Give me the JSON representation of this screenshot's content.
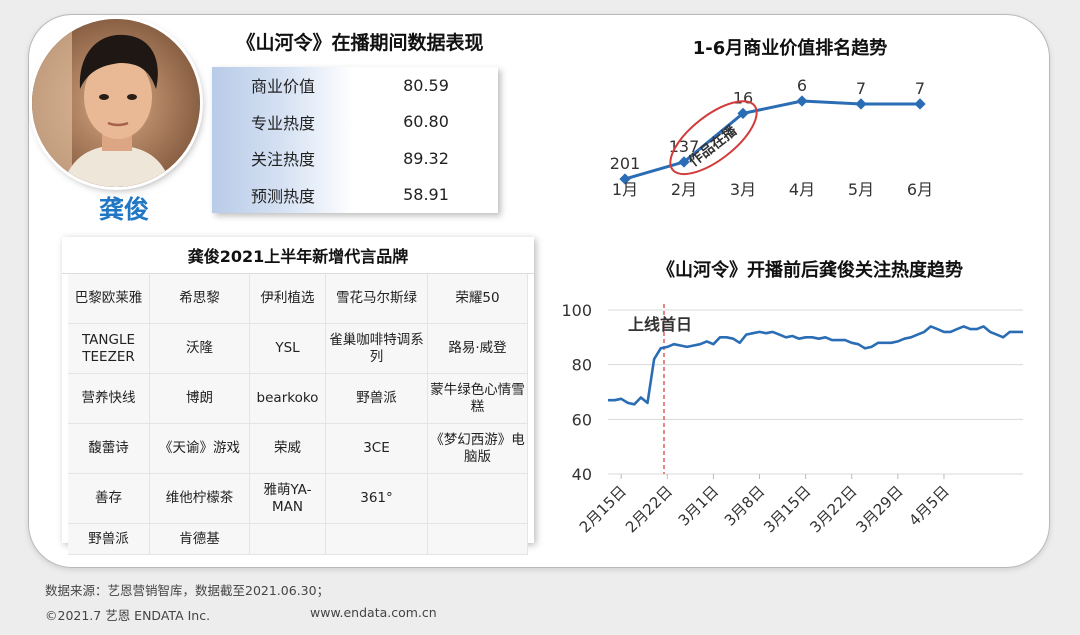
{
  "person": {
    "name": "龚俊"
  },
  "performance": {
    "title": "《山河令》在播期间数据表现",
    "metrics": [
      {
        "label": "商业价值",
        "value": "80.59"
      },
      {
        "label": "专业热度",
        "value": "60.80"
      },
      {
        "label": "关注热度",
        "value": "89.32"
      },
      {
        "label": "预测热度",
        "value": "58.91"
      }
    ]
  },
  "brands": {
    "title": "龚俊2021上半年新增代言品牌",
    "rows": [
      [
        "巴黎欧莱雅",
        "希思黎",
        "伊利植选",
        "雪花马尔斯绿",
        "荣耀50"
      ],
      [
        "TANGLE TEEZER",
        "沃隆",
        "YSL",
        "雀巢咖啡特调系列",
        "路易·威登"
      ],
      [
        "营养快线",
        "博朗",
        "bearkoko",
        "野兽派",
        "蒙牛绿色心情雪糕"
      ],
      [
        "馥蕾诗",
        "《天谕》游戏",
        "荣威",
        "3CE",
        "《梦幻西游》电脑版"
      ],
      [
        "善存",
        "维他柠檬茶",
        "雅萌YA-MAN",
        "361°",
        ""
      ],
      [
        "野兽派",
        "肯德基",
        "",
        "",
        ""
      ]
    ]
  },
  "chart_data": [
    {
      "type": "line",
      "title": "1-6月商业价值排名趋势",
      "categories": [
        "1月",
        "2月",
        "3月",
        "4月",
        "5月",
        "6月"
      ],
      "values": [
        201,
        137,
        16,
        6,
        7,
        7
      ],
      "data_labels": [
        "201",
        "137",
        "16",
        "6",
        "7",
        "7"
      ],
      "annotation": "作品在播",
      "color": "#2a6db5"
    },
    {
      "type": "line",
      "title": "《山河令》开播前后龚俊关注热度趋势",
      "x_ticks": [
        "2月15日",
        "2月22日",
        "3月1日",
        "3月8日",
        "3月15日",
        "3月22日",
        "3月29日",
        "4月5日"
      ],
      "ylim": [
        40,
        100
      ],
      "y_ticks": [
        "40",
        "60",
        "80",
        "100"
      ],
      "grid": true,
      "annotation": "上线首日",
      "annotation_date": "2月22日",
      "color": "#2a6db5",
      "start_date": "2021-02-13",
      "values": [
        67,
        67,
        67.5,
        66,
        65.5,
        68,
        66,
        82,
        86,
        86.5,
        87.5,
        87,
        86.5,
        87,
        87.5,
        88.5,
        87.5,
        90,
        90,
        89.5,
        88,
        91,
        91.5,
        92,
        91.5,
        92,
        91,
        90,
        90.5,
        89.5,
        90,
        90,
        89.5,
        90,
        89,
        89,
        89,
        88,
        87.5,
        86,
        86.5,
        88,
        88,
        88,
        88.5,
        89.5,
        90,
        91,
        92,
        94,
        93,
        92,
        92,
        93,
        94,
        93,
        93,
        94,
        92,
        91,
        90,
        92,
        92,
        92
      ]
    }
  ],
  "footer": {
    "source": "数据来源：艺恩营销智库，数据截至2021.06.30；",
    "copyright": "©2021.7 艺恩 ENDATA Inc.",
    "website": "www.endata.com.cn"
  }
}
